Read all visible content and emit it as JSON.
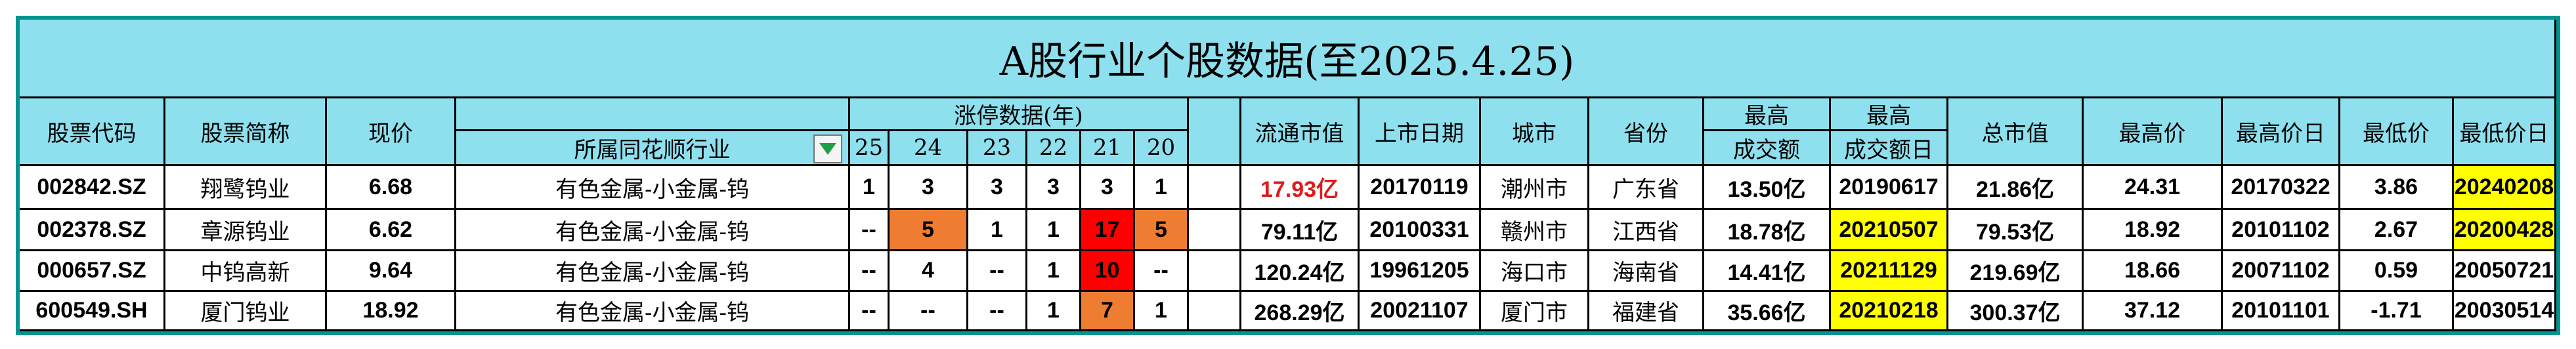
{
  "title": "A股行业个股数据(至2025.4.25)",
  "header": {
    "stock_code": "股票代码",
    "stock_name": "股票简称",
    "price": "现价",
    "industry": "所属同花顺行业",
    "limit_up": "涨停数据(年)",
    "years": [
      "25",
      "24",
      "23",
      "22",
      "21",
      "20"
    ],
    "float_mcap": "流通市值",
    "listing_date": "上市日期",
    "city": "城市",
    "province": "省份",
    "max_turnover_1": "最高",
    "max_turnover_2": "成交额",
    "max_turnover_day_1": "最高",
    "max_turnover_day_2": "成交额日",
    "total_mcap": "总市值",
    "high_price": "最高价",
    "high_price_date": "最高价日",
    "low_price": "最低价",
    "low_price_date": "最低价日"
  },
  "colors": {
    "header_bg": "#8ee0ee",
    "border_teal": "#00948f",
    "highlight_yellow": "#ffff00",
    "highlight_orange": "#ef7d31",
    "highlight_red": "#ff0000",
    "text_red": "#e0191b"
  },
  "filter_icon": "filter-dropdown-icon",
  "rows": [
    {
      "code": "002842.SZ",
      "name": "翔鹭钨业",
      "price": "6.68",
      "industry": "有色金属-小金属-钨",
      "limit": [
        "1",
        "3",
        "3",
        "3",
        "3",
        "1"
      ],
      "limit_hl": [
        "",
        "",
        "",
        "",
        "",
        ""
      ],
      "float_mcap": "17.93亿",
      "float_mcap_red": true,
      "listing_date": "20170119",
      "city": "潮州市",
      "province": "广东省",
      "max_turnover": "13.50亿",
      "max_turnover_date": "20190617",
      "max_turnover_date_hl": false,
      "total_mcap": "21.86亿",
      "high_price": "24.31",
      "high_price_date": "20170322",
      "low_price": "3.86",
      "low_price_date": "20240208",
      "low_price_date_hl": true
    },
    {
      "code": "002378.SZ",
      "name": "章源钨业",
      "price": "6.62",
      "industry": "有色金属-小金属-钨",
      "limit": [
        "--",
        "5",
        "1",
        "1",
        "17",
        "5"
      ],
      "limit_hl": [
        "",
        "orange",
        "",
        "",
        "red",
        "orange"
      ],
      "float_mcap": "79.11亿",
      "float_mcap_red": false,
      "listing_date": "20100331",
      "city": "赣州市",
      "province": "江西省",
      "max_turnover": "18.78亿",
      "max_turnover_date": "20210507",
      "max_turnover_date_hl": true,
      "total_mcap": "79.53亿",
      "high_price": "18.92",
      "high_price_date": "20101102",
      "low_price": "2.67",
      "low_price_date": "20200428",
      "low_price_date_hl": true
    },
    {
      "code": "000657.SZ",
      "name": "中钨高新",
      "price": "9.64",
      "industry": "有色金属-小金属-钨",
      "limit": [
        "--",
        "4",
        "--",
        "1",
        "10",
        "--"
      ],
      "limit_hl": [
        "",
        "",
        "",
        "",
        "red",
        ""
      ],
      "float_mcap": "120.24亿",
      "float_mcap_red": false,
      "listing_date": "19961205",
      "city": "海口市",
      "province": "海南省",
      "max_turnover": "14.41亿",
      "max_turnover_date": "20211129",
      "max_turnover_date_hl": true,
      "total_mcap": "219.69亿",
      "high_price": "18.66",
      "high_price_date": "20071102",
      "low_price": "0.59",
      "low_price_date": "20050721",
      "low_price_date_hl": false
    },
    {
      "code": "600549.SH",
      "name": "厦门钨业",
      "price": "18.92",
      "industry": "有色金属-小金属-钨",
      "limit": [
        "--",
        "--",
        "--",
        "1",
        "7",
        "1"
      ],
      "limit_hl": [
        "",
        "",
        "",
        "",
        "orange",
        ""
      ],
      "float_mcap": "268.29亿",
      "float_mcap_red": false,
      "listing_date": "20021107",
      "city": "厦门市",
      "province": "福建省",
      "max_turnover": "35.66亿",
      "max_turnover_date": "20210218",
      "max_turnover_date_hl": true,
      "total_mcap": "300.37亿",
      "high_price": "37.12",
      "high_price_date": "20101101",
      "low_price": "-1.71",
      "low_price_date": "20030514",
      "low_price_date_hl": false
    }
  ]
}
